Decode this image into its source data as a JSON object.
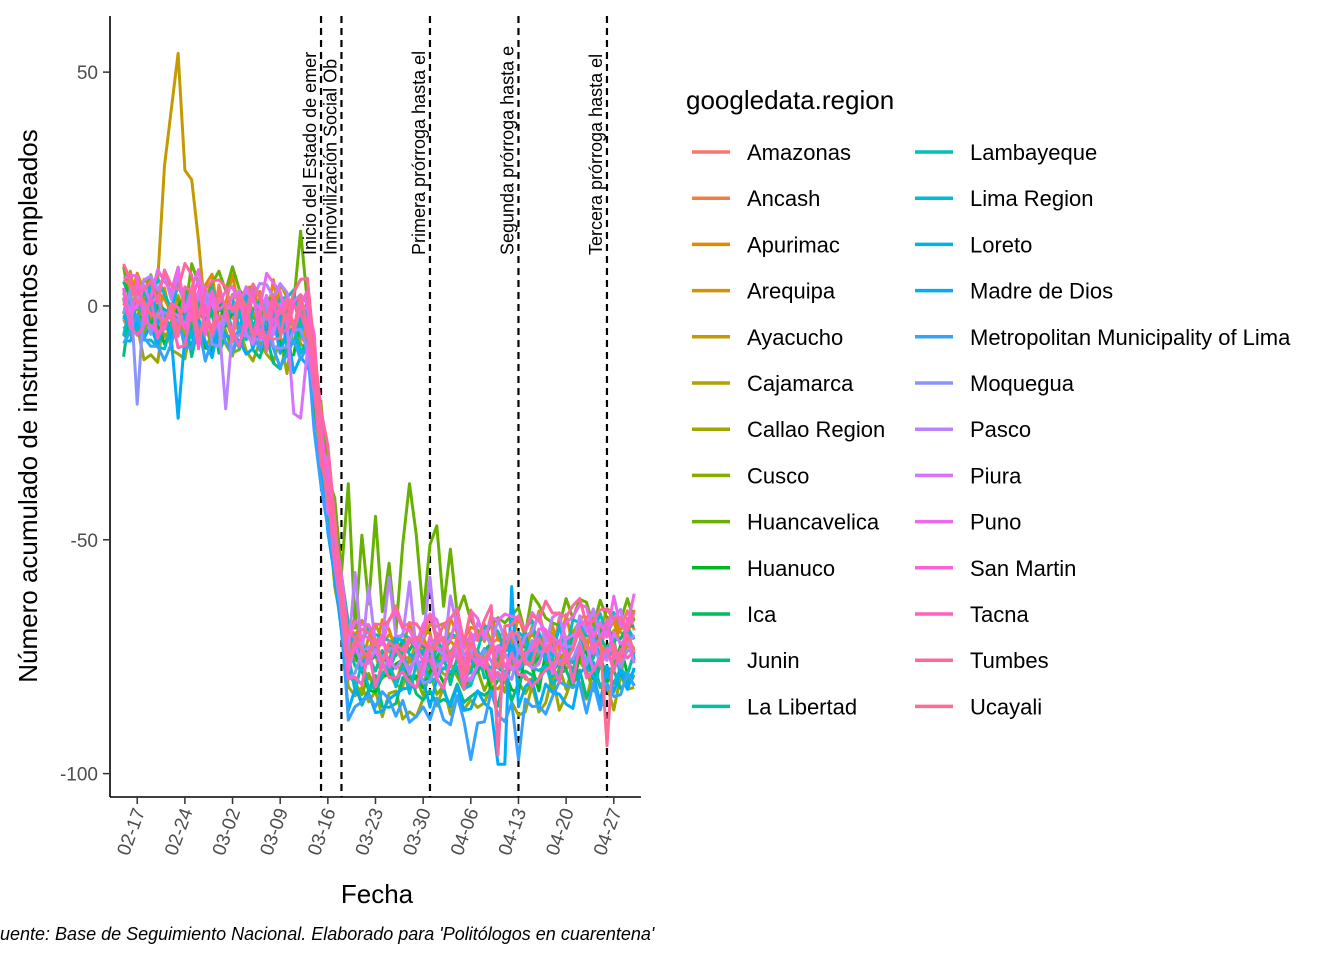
{
  "chart_data": {
    "type": "line",
    "title": "",
    "xlabel": "Fecha",
    "ylabel": "Número acumulado de instrumentos empleados",
    "x_start": "2020-02-15",
    "x_end": "2020-04-30",
    "xlim": [
      "2020-02-13",
      "2020-05-01"
    ],
    "ylim": [
      -105,
      62
    ],
    "x_ticks": [
      {
        "date": "2020-02-17",
        "label": "02-17"
      },
      {
        "date": "2020-02-24",
        "label": "02-24"
      },
      {
        "date": "2020-03-02",
        "label": "03-02"
      },
      {
        "date": "2020-03-09",
        "label": "03-09"
      },
      {
        "date": "2020-03-16",
        "label": "03-16"
      },
      {
        "date": "2020-03-23",
        "label": "03-23"
      },
      {
        "date": "2020-03-30",
        "label": "03-30"
      },
      {
        "date": "2020-04-06",
        "label": "04-06"
      },
      {
        "date": "2020-04-13",
        "label": "04-13"
      },
      {
        "date": "2020-04-20",
        "label": "04-20"
      },
      {
        "date": "2020-04-27",
        "label": "04-27"
      }
    ],
    "y_ticks": [
      {
        "value": 50,
        "label": "50"
      },
      {
        "value": 0,
        "label": "0"
      },
      {
        "value": -50,
        "label": "-50"
      },
      {
        "value": -100,
        "label": "-100"
      }
    ],
    "vlines": [
      {
        "date": "2020-03-15",
        "label": "Inicio del Estado de emer"
      },
      {
        "date": "2020-03-18",
        "label": "Inmovilización Social Ob"
      },
      {
        "date": "2020-03-31",
        "label": "Primera prórroga hasta el"
      },
      {
        "date": "2020-04-13",
        "label": "Segunda prórroga hasta e"
      },
      {
        "date": "2020-04-26",
        "label": "Tercera prórroga hasta el"
      }
    ],
    "legend_title": "googledata.region",
    "legend_position": "right",
    "grid": false,
    "caption": "uente: Base de Seguimiento Nacional. Elaborado para 'Politólogos en cuarentena'",
    "phases": [
      {
        "date": "2020-02-15",
        "base": 0,
        "wobble": 6
      },
      {
        "date": "2020-03-13",
        "base": -3,
        "wobble": 6
      },
      {
        "date": "2020-03-19",
        "base": -74,
        "wobble": 4
      },
      {
        "date": "2020-04-04",
        "base": -75,
        "wobble": 4
      },
      {
        "date": "2020-04-30",
        "base": -72,
        "wobble": 5
      }
    ],
    "series": [
      {
        "name": "Amazonas",
        "color": "#F8766D",
        "offset": 2
      },
      {
        "name": "Ancash",
        "color": "#EF7F47",
        "offset": -1
      },
      {
        "name": "Apurimac",
        "color": "#E38900",
        "offset": 4
      },
      {
        "name": "Arequipa",
        "color": "#D49200",
        "offset": 1
      },
      {
        "name": "Ayacucho",
        "color": "#C49A00",
        "offset": 3,
        "overrides": [
          {
            "date": "2020-02-21",
            "y": 30
          },
          {
            "date": "2020-02-22",
            "y": 42
          },
          {
            "date": "2020-02-23",
            "y": 54
          },
          {
            "date": "2020-02-24",
            "y": 29
          },
          {
            "date": "2020-02-25",
            "y": 27
          },
          {
            "date": "2020-02-26",
            "y": 14
          }
        ]
      },
      {
        "name": "Cajamarca",
        "color": "#B2A100",
        "offset": -3
      },
      {
        "name": "Callao Region",
        "color": "#9DA700",
        "offset": -9
      },
      {
        "name": "Cusco",
        "color": "#85AD00",
        "offset": -5
      },
      {
        "name": "Huancavelica",
        "color": "#68B100",
        "offset": 7,
        "overrides": [
          {
            "date": "2020-03-12",
            "y": 16
          },
          {
            "date": "2020-03-19",
            "y": -38
          },
          {
            "date": "2020-03-21",
            "y": -49
          },
          {
            "date": "2020-03-23",
            "y": -45
          },
          {
            "date": "2020-03-25",
            "y": -55
          },
          {
            "date": "2020-03-27",
            "y": -51
          },
          {
            "date": "2020-03-28",
            "y": -38
          },
          {
            "date": "2020-03-29",
            "y": -49
          },
          {
            "date": "2020-03-31",
            "y": -51
          },
          {
            "date": "2020-04-01",
            "y": -47
          },
          {
            "date": "2020-04-03",
            "y": -52
          },
          {
            "date": "2020-04-05",
            "y": -62
          }
        ]
      },
      {
        "name": "Huanuco",
        "color": "#00B81F",
        "offset": -4
      },
      {
        "name": "Ica",
        "color": "#00BC59",
        "offset": 0
      },
      {
        "name": "Junin",
        "color": "#00BF7D",
        "offset": -7
      },
      {
        "name": "La Libertad",
        "color": "#00C19C",
        "offset": -2
      },
      {
        "name": "Lambayeque",
        "color": "#00C1B8",
        "offset": 2
      },
      {
        "name": "Lima Region",
        "color": "#00BCD1",
        "offset": -4
      },
      {
        "name": "Loreto",
        "color": "#00B5E6",
        "offset": 1
      },
      {
        "name": "Madre de Dios",
        "color": "#00ABFA",
        "offset": -8,
        "overrides": [
          {
            "date": "2020-02-23",
            "y": -24
          },
          {
            "date": "2020-04-10",
            "y": -98
          },
          {
            "date": "2020-04-11",
            "y": -98
          },
          {
            "date": "2020-04-12",
            "y": -60
          }
        ]
      },
      {
        "name": "Metropolitan Municipality of Lima",
        "color": "#35A2FF",
        "offset": -10,
        "overrides": [
          {
            "date": "2020-04-06",
            "y": -97
          },
          {
            "date": "2020-04-13",
            "y": -97
          }
        ]
      },
      {
        "name": "Moquegua",
        "color": "#8B93FF",
        "offset": -2,
        "overrides": [
          {
            "date": "2020-02-17",
            "y": -21
          }
        ]
      },
      {
        "name": "Pasco",
        "color": "#B983FF",
        "offset": 3,
        "overrides": [
          {
            "date": "2020-03-01",
            "y": -22
          },
          {
            "date": "2020-03-20",
            "y": -57
          },
          {
            "date": "2020-03-22",
            "y": -60
          },
          {
            "date": "2020-03-25",
            "y": -58
          },
          {
            "date": "2020-03-28",
            "y": -59
          },
          {
            "date": "2020-03-31",
            "y": -58
          },
          {
            "date": "2020-04-03",
            "y": -62
          }
        ]
      },
      {
        "name": "Piura",
        "color": "#D674FF",
        "offset": -1,
        "overrides": [
          {
            "date": "2020-03-11",
            "y": -23
          },
          {
            "date": "2020-03-12",
            "y": -24
          }
        ]
      },
      {
        "name": "Puno",
        "color": "#ED68ED",
        "offset": 5
      },
      {
        "name": "San Martin",
        "color": "#FB61D7",
        "offset": 1
      },
      {
        "name": "Tacna",
        "color": "#FF61BC",
        "offset": -3
      },
      {
        "name": "Tumbes",
        "color": "#FF679F",
        "offset": 6,
        "overrides": [
          {
            "date": "2020-04-10",
            "y": -96
          }
        ]
      },
      {
        "name": "Ucayali",
        "color": "#FF6C91",
        "offset": 0,
        "overrides": [
          {
            "date": "2020-04-26",
            "y": -94
          }
        ]
      }
    ]
  }
}
